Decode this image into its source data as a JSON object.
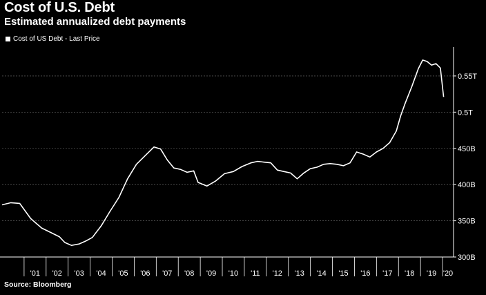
{
  "header": {
    "title": "Cost of U.S. Debt",
    "subtitle": "Estimated annualized debt payments"
  },
  "legend": {
    "label": "Cost of US Debt - Last Price"
  },
  "footer": {
    "source": "Source: Bloomberg"
  },
  "colors": {
    "background": "#000000",
    "line": "#ffffff",
    "grid": "#555555"
  },
  "chart_data": {
    "type": "line",
    "title": "Cost of U.S. Debt",
    "subtitle": "Estimated annualized debt payments",
    "xlabel": "",
    "ylabel": "",
    "unit": "USD",
    "legend_position": "top-left",
    "grid": "horizontal dashed",
    "y_axis_side": "right",
    "ylim": [
      300,
      590
    ],
    "xlim": [
      2000,
      2020.5
    ],
    "y_ticks": [
      {
        "value": 300,
        "label": "300B"
      },
      {
        "value": 350,
        "label": "350B"
      },
      {
        "value": 400,
        "label": "400B"
      },
      {
        "value": 450,
        "label": "450B"
      },
      {
        "value": 500,
        "label": "0.5T"
      },
      {
        "value": 550,
        "label": "0.55T"
      }
    ],
    "x_ticks": [
      {
        "value": 2001,
        "label": "'01"
      },
      {
        "value": 2002,
        "label": "'02"
      },
      {
        "value": 2003,
        "label": "'03"
      },
      {
        "value": 2004,
        "label": "'04"
      },
      {
        "value": 2005,
        "label": "'05"
      },
      {
        "value": 2006,
        "label": "'06"
      },
      {
        "value": 2007,
        "label": "'07"
      },
      {
        "value": 2008,
        "label": "'08"
      },
      {
        "value": 2009,
        "label": "'09"
      },
      {
        "value": 2010,
        "label": "'10"
      },
      {
        "value": 2011,
        "label": "'11"
      },
      {
        "value": 2012,
        "label": "'12"
      },
      {
        "value": 2013,
        "label": "'13"
      },
      {
        "value": 2014,
        "label": "'14"
      },
      {
        "value": 2015,
        "label": "'15"
      },
      {
        "value": 2016,
        "label": "'16"
      },
      {
        "value": 2017,
        "label": "'17"
      },
      {
        "value": 2018,
        "label": "'18"
      },
      {
        "value": 2019,
        "label": "'19"
      },
      {
        "value": 2020,
        "label": "'20"
      }
    ],
    "series": [
      {
        "name": "Cost of US Debt - Last Price",
        "x": [
          2000.0,
          2000.4,
          2000.8,
          2001.3,
          2001.8,
          2002.2,
          2002.6,
          2002.85,
          2003.15,
          2003.5,
          2003.8,
          2004.1,
          2004.5,
          2004.9,
          2005.3,
          2005.7,
          2006.1,
          2006.5,
          2006.9,
          2007.2,
          2007.5,
          2007.8,
          2008.1,
          2008.4,
          2008.7,
          2008.9,
          2009.3,
          2009.7,
          2010.1,
          2010.5,
          2010.9,
          2011.3,
          2011.6,
          2011.9,
          2012.2,
          2012.5,
          2012.8,
          2013.1,
          2013.4,
          2013.7,
          2014.0,
          2014.3,
          2014.6,
          2014.9,
          2015.2,
          2015.5,
          2015.8,
          2016.1,
          2016.4,
          2016.7,
          2017.0,
          2017.3,
          2017.6,
          2017.9,
          2018.1,
          2018.3,
          2018.6,
          2018.9,
          2019.1,
          2019.3,
          2019.5,
          2019.7,
          2019.9,
          2020.05
        ],
        "values": [
          372,
          375,
          374,
          353,
          340,
          334,
          328,
          320,
          316,
          318,
          322,
          327,
          343,
          363,
          382,
          408,
          428,
          440,
          452,
          449,
          434,
          423,
          421,
          417,
          419,
          403,
          398,
          405,
          415,
          418,
          425,
          430,
          432,
          431,
          430,
          420,
          418,
          416,
          408,
          416,
          422,
          424,
          428,
          429,
          428,
          426,
          430,
          445,
          442,
          438,
          445,
          450,
          458,
          474,
          495,
          512,
          535,
          560,
          572,
          570,
          565,
          567,
          561,
          521
        ]
      }
    ]
  }
}
